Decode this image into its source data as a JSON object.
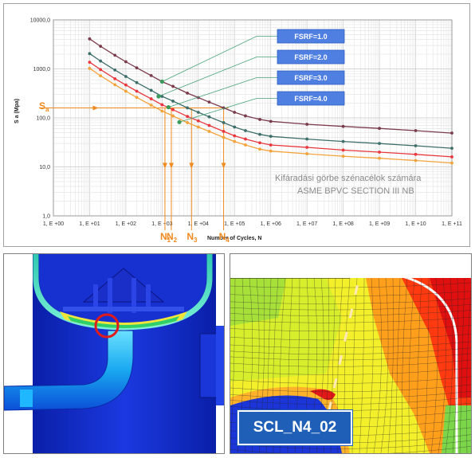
{
  "chart_data": {
    "type": "line",
    "title": "",
    "xlabel": "Number of Cycles, N",
    "ylabel": "S a (Mpa)",
    "x_scale": "log",
    "y_scale": "log",
    "xlim": [
      1,
      100000000000
    ],
    "ylim": [
      1,
      10000
    ],
    "grid": true,
    "x_tick_labels": [
      "1, E +00",
      "1, E +01",
      "1, E +02",
      "1, E +03",
      "1, E +04",
      "1, E +05",
      "1, E +06",
      "1, E +07",
      "1, E +08",
      "1, E +09",
      "1, E +10",
      "1, E +11"
    ],
    "y_tick_labels": [
      "1,0",
      "10,0",
      "100,0",
      "1000,0",
      "10000,0"
    ],
    "series": [
      {
        "name": "FSRF=1.0",
        "color": "#7a3b4c",
        "x": [
          10,
          20,
          50,
          100,
          200,
          500,
          1000,
          2000,
          5000,
          10000,
          20000,
          50000,
          100000,
          200000,
          500000,
          1000000,
          10000000,
          100000000,
          1000000000,
          10000000000,
          100000000000
        ],
        "y": [
          4100,
          2900,
          1900,
          1400,
          1050,
          730,
          550,
          440,
          320,
          260,
          210,
          160,
          130,
          110,
          93,
          85,
          74,
          67,
          61,
          55,
          49
        ]
      },
      {
        "name": "FSRF=2.0",
        "color": "#3d6e6a",
        "x": [
          10,
          20,
          50,
          100,
          200,
          500,
          1000,
          2000,
          5000,
          10000,
          20000,
          50000,
          100000,
          200000,
          500000,
          1000000,
          10000000,
          100000000,
          1000000000,
          10000000000,
          100000000000
        ],
        "y": [
          2050,
          1450,
          950,
          700,
          525,
          365,
          275,
          220,
          160,
          130,
          105,
          80,
          65,
          55,
          46,
          42,
          37,
          33,
          30,
          27,
          24
        ]
      },
      {
        "name": "FSRF=3.0",
        "color": "#e8383d",
        "x": [
          10,
          20,
          50,
          100,
          200,
          500,
          1000,
          2000,
          5000,
          10000,
          20000,
          50000,
          100000,
          200000,
          500000,
          1000000,
          10000000,
          100000000,
          1000000000,
          10000000000,
          100000000000
        ],
        "y": [
          1370,
          970,
          630,
          470,
          350,
          245,
          185,
          147,
          107,
          87,
          70,
          53,
          43,
          37,
          31,
          28,
          25,
          22,
          20,
          18,
          16
        ]
      },
      {
        "name": "FSRF=4.0",
        "color": "#f4a23a",
        "x": [
          10,
          20,
          50,
          100,
          200,
          500,
          1000,
          2000,
          5000,
          10000,
          20000,
          50000,
          100000,
          200000,
          500000,
          1000000,
          10000000,
          100000000,
          1000000000,
          10000000000,
          100000000000
        ],
        "y": [
          1025,
          725,
          475,
          350,
          262,
          182,
          138,
          110,
          80,
          65,
          53,
          40,
          33,
          28,
          23,
          21,
          18.5,
          16.5,
          15,
          13.5,
          12
        ]
      }
    ],
    "sa_label": "S",
    "sa_sub": "a",
    "sa_value": 160,
    "n_labels": [
      {
        "label": "N",
        "sub": "1",
        "x": 1200
      },
      {
        "label": "N",
        "sub": "2",
        "x": 1800
      },
      {
        "label": "N",
        "sub": "3",
        "x": 6500
      },
      {
        "label": "N",
        "sub": "4",
        "x": 50000
      }
    ],
    "annotation_line1": "Kifáradási görbe szénacélok számára",
    "annotation_line2": "ASME BPVC SECTION III NB"
  },
  "simulation": {
    "label": "SCL_N4_02",
    "highlight_color": "#e11b1b"
  }
}
